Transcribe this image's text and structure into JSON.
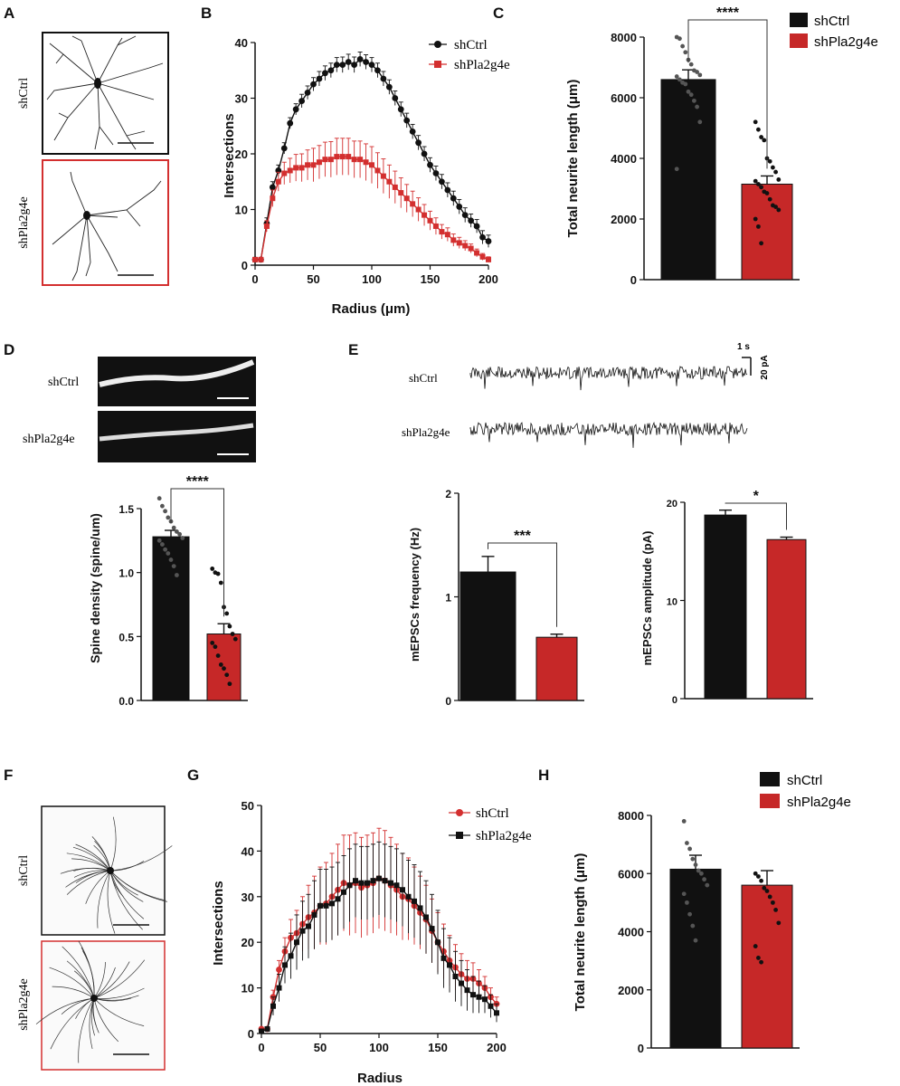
{
  "panel_letters": [
    "A",
    "B",
    "C",
    "D",
    "E",
    "F",
    "G",
    "H"
  ],
  "group_labels": {
    "a_ctrl": "shCtrl",
    "a_sh": "shPla2g4e",
    "d_ctrl": "shCtrl",
    "d_sh": "shPla2g4e",
    "e_ctrl": "shCtrl",
    "e_sh": "shPla2g4e",
    "f_ctrl": "shCtrl",
    "f_sh": "shPla2g4e"
  },
  "trace_scalebar": {
    "time": "1 s",
    "current": "20 pA"
  },
  "colors": {
    "ctrl": "#111111",
    "sh": "#d32f2f",
    "sh_bar": "#c62828"
  },
  "chart_data": [
    {
      "id": "B",
      "type": "line",
      "xlabel": "Radius (μm)",
      "ylabel": "Intersections",
      "xlim": [
        0,
        200
      ],
      "ylim": [
        0,
        40
      ],
      "xticks": [
        "0",
        "50",
        "100",
        "150",
        "200"
      ],
      "yticks": [
        "0",
        "10",
        "20",
        "30",
        "40"
      ],
      "legend": "top-right",
      "x": [
        0,
        5,
        10,
        15,
        20,
        25,
        30,
        35,
        40,
        45,
        50,
        55,
        60,
        65,
        70,
        75,
        80,
        85,
        90,
        95,
        100,
        105,
        110,
        115,
        120,
        125,
        130,
        135,
        140,
        145,
        150,
        155,
        160,
        165,
        170,
        175,
        180,
        185,
        190,
        195,
        200
      ],
      "series": [
        {
          "name": "shCtrl",
          "color": "#111111",
          "marker": "circle",
          "values": [
            1,
            1,
            7.5,
            14,
            17,
            21,
            25.5,
            28,
            29.5,
            31,
            32.5,
            33.5,
            34.5,
            35,
            36,
            36,
            36.5,
            36,
            37,
            36.5,
            36,
            35,
            33.5,
            32,
            30,
            28,
            26,
            24,
            22,
            20,
            18,
            16.5,
            15,
            13.5,
            12,
            10.5,
            9,
            8,
            7,
            5,
            4.3
          ],
          "err": [
            0.3,
            0.3,
            1,
            1,
            1,
            1,
            1,
            1,
            1.2,
            1.2,
            1.2,
            1.3,
            1.3,
            1.3,
            1.3,
            1.4,
            1.4,
            1.4,
            1.3,
            1.3,
            1.3,
            1.3,
            1.3,
            1.3,
            1.3,
            1.3,
            1.3,
            1.3,
            1.3,
            1.3,
            1.3,
            1.3,
            1.3,
            1.3,
            1.3,
            1.3,
            1.3,
            1.2,
            1.2,
            1.2,
            1.1
          ]
        },
        {
          "name": "shPla2g4e",
          "color": "#d32f2f",
          "marker": "square",
          "values": [
            1,
            1,
            7,
            12,
            15,
            16.5,
            17,
            17.5,
            17.5,
            18,
            18,
            18.5,
            19,
            19,
            19.5,
            19.5,
            19.5,
            19,
            19,
            18.5,
            18,
            17,
            16,
            15,
            14,
            13,
            12,
            11,
            10,
            9,
            8,
            7,
            6,
            5.5,
            4.5,
            4,
            3.5,
            3,
            2.2,
            1.5,
            1
          ],
          "err": [
            0.3,
            0.3,
            1,
            1.5,
            1.7,
            2,
            2.2,
            2.4,
            2.5,
            2.7,
            3,
            3,
            3.1,
            3.2,
            3.3,
            3.3,
            3.3,
            3.3,
            3.3,
            3.3,
            3.3,
            3.2,
            3.1,
            3,
            2.9,
            2.7,
            2.5,
            2.3,
            2.1,
            1.9,
            1.7,
            1.5,
            1.3,
            1.2,
            1.1,
            1,
            0.9,
            0.8,
            0.7,
            0.6,
            0.5
          ]
        }
      ]
    },
    {
      "id": "C",
      "type": "bar",
      "ylabel": "Total neurite length (μm)",
      "ylim": [
        0,
        8000
      ],
      "yticks": [
        "0",
        "2000",
        "4000",
        "6000",
        "8000"
      ],
      "legend": "top-right",
      "categories": [
        "shCtrl",
        "shPla2g4e"
      ],
      "values": [
        6600,
        3150
      ],
      "err": [
        320,
        270
      ],
      "significance": "****",
      "points": [
        [
          8000,
          7950,
          7700,
          7500,
          7250,
          7100,
          6900,
          6850,
          6750,
          6700,
          6600,
          6500,
          6450,
          6200,
          6100,
          5900,
          5700,
          5200,
          3650
        ],
        [
          5200,
          4950,
          4700,
          4600,
          4000,
          3900,
          3700,
          3550,
          3300,
          3250,
          3150,
          3050,
          2900,
          2850,
          2650,
          2450,
          2400,
          2300,
          2000,
          1750,
          1200
        ]
      ]
    },
    {
      "id": "D",
      "type": "bar",
      "ylabel": "Spine density (spine/um)",
      "ylim": [
        0,
        1.5
      ],
      "yticks": [
        "0.0",
        "0.5",
        "1.0",
        "1.5"
      ],
      "categories": [
        "shCtrl",
        "shPla2g4e"
      ],
      "values": [
        1.28,
        0.52
      ],
      "err": [
        0.05,
        0.08
      ],
      "significance": "****",
      "points": [
        [
          1.58,
          1.52,
          1.48,
          1.43,
          1.4,
          1.35,
          1.32,
          1.3,
          1.27,
          1.25,
          1.22,
          1.18,
          1.15,
          1.1,
          1.05,
          0.98
        ],
        [
          1.03,
          1.0,
          0.99,
          0.92,
          0.73,
          0.68,
          0.58,
          0.52,
          0.48,
          0.45,
          0.42,
          0.35,
          0.28,
          0.25,
          0.2,
          0.13
        ]
      ]
    },
    {
      "id": "E1",
      "type": "bar",
      "ylabel": "mEPSCs frequency (Hz)",
      "ylim": [
        0,
        2
      ],
      "yticks": [
        "0",
        "1",
        "2"
      ],
      "categories": [
        "shCtrl",
        "shPla2g4e"
      ],
      "values": [
        1.24,
        0.61
      ],
      "err": [
        0.15,
        0.03
      ],
      "significance": "***"
    },
    {
      "id": "E2",
      "type": "bar",
      "ylabel": "mEPSCs amplitude (pA)",
      "ylim": [
        0,
        20
      ],
      "yticks": [
        "0",
        "10",
        "20"
      ],
      "categories": [
        "shCtrl",
        "shPla2g4e"
      ],
      "values": [
        18.7,
        16.2
      ],
      "err": [
        0.5,
        0.25
      ],
      "significance": "*"
    },
    {
      "id": "G",
      "type": "line",
      "xlabel": "Radius",
      "ylabel": "Intersections",
      "xlim": [
        0,
        200
      ],
      "ylim": [
        0,
        50
      ],
      "xticks": [
        "0",
        "50",
        "100",
        "150",
        "200"
      ],
      "yticks": [
        "0",
        "10",
        "20",
        "30",
        "40",
        "50"
      ],
      "legend": "top-right",
      "x": [
        0,
        5,
        10,
        15,
        20,
        25,
        30,
        35,
        40,
        45,
        50,
        55,
        60,
        65,
        70,
        75,
        80,
        85,
        90,
        95,
        100,
        105,
        110,
        115,
        120,
        125,
        130,
        135,
        140,
        145,
        150,
        155,
        160,
        165,
        170,
        175,
        180,
        185,
        190,
        195,
        200
      ],
      "series": [
        {
          "name": "shCtrl",
          "color": "#d32f2f",
          "marker": "circle",
          "values": [
            1,
            1,
            8,
            14,
            18,
            21,
            22,
            24,
            25.5,
            26.5,
            28,
            28.5,
            30,
            31.5,
            33,
            32.5,
            33,
            32,
            32.5,
            33,
            34,
            33.5,
            32.5,
            31.5,
            30,
            29.5,
            28,
            26.5,
            25,
            22.5,
            20,
            18,
            16,
            14.5,
            13,
            12,
            12,
            11,
            10,
            8,
            6.5
          ],
          "err": [
            0.3,
            0.5,
            1.5,
            2,
            3,
            4,
            5,
            6,
            7,
            8,
            8.5,
            9,
            9.5,
            10,
            10.5,
            11,
            11,
            11,
            11,
            11,
            11,
            11,
            10.5,
            10,
            9.5,
            9,
            8.5,
            8,
            7.5,
            7,
            6.5,
            6,
            5.5,
            5,
            4.5,
            4,
            3.5,
            3,
            2.5,
            2,
            1.5
          ]
        },
        {
          "name": "shPla2g4e",
          "color": "#111111",
          "marker": "square",
          "values": [
            0.5,
            1,
            6,
            10,
            15,
            17,
            20,
            22.5,
            23.5,
            26,
            28,
            28,
            28.5,
            29.5,
            31,
            32.5,
            33.5,
            33,
            33,
            33.5,
            34,
            33.5,
            33,
            32.5,
            31.5,
            30,
            29,
            27.5,
            25.5,
            23,
            20,
            16.5,
            15,
            12.5,
            11,
            9.5,
            8.5,
            8,
            7.5,
            6,
            4.5
          ],
          "err": [
            0.3,
            0.5,
            2,
            3,
            4,
            5,
            6,
            6.5,
            7,
            7.5,
            8,
            8,
            8,
            8,
            8,
            8,
            8,
            8,
            8,
            8,
            8,
            8,
            8,
            8,
            8,
            8,
            8,
            8,
            8,
            7.5,
            7,
            6.5,
            6,
            5.5,
            5,
            4.5,
            4,
            3.5,
            3,
            2.5,
            2
          ]
        }
      ]
    },
    {
      "id": "H",
      "type": "bar",
      "ylabel": "Total neurite length (μm)",
      "ylim": [
        0,
        8000
      ],
      "yticks": [
        "0",
        "2000",
        "4000",
        "6000",
        "8000"
      ],
      "legend": "top-right",
      "categories": [
        "shCtrl",
        "shPla2g4e"
      ],
      "values": [
        6150,
        5600
      ],
      "err": [
        480,
        500
      ],
      "points": [
        [
          7800,
          7050,
          6850,
          6500,
          6300,
          6100,
          6000,
          5800,
          5600,
          5300,
          5000,
          4600,
          4200,
          3700
        ],
        [
          6000,
          5900,
          5750,
          5500,
          5400,
          5200,
          5000,
          4750,
          4300,
          3500,
          3100,
          2950
        ]
      ]
    }
  ]
}
